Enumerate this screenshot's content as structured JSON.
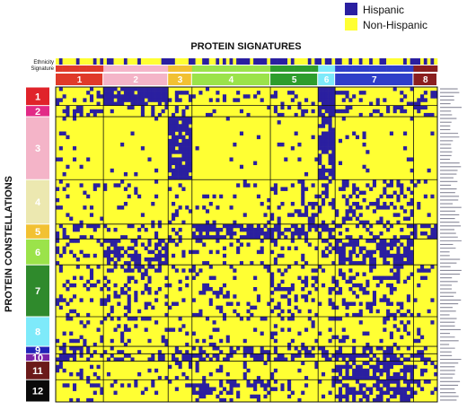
{
  "legend": {
    "items": [
      {
        "label": "Hispanic",
        "color": "#2a1fa0"
      },
      {
        "label": "Non-Hispanic",
        "color": "#ffff33"
      }
    ]
  },
  "colors": {
    "hispanic": "#2a1fa0",
    "non_hispanic": "#ffff33",
    "grid_lines": "#111111"
  },
  "chart_data": {
    "type": "heatmap",
    "title": "PROTEIN SIGNATURES",
    "ylabel": "PROTEIN CONSTELLATIONS",
    "track_labels": [
      "Ethnicity",
      "Signature"
    ],
    "value_encoding": "binary (1 = Hispanic color, 0 = Non-Hispanic color)",
    "signatures": [
      {
        "label": "1",
        "color": "#e03a2a",
        "columns": 14
      },
      {
        "label": "2",
        "color": "#f4b4c8",
        "columns": 19
      },
      {
        "label": "3",
        "color": "#f2c132",
        "columns": 7
      },
      {
        "label": "4",
        "color": "#9be34a",
        "columns": 23
      },
      {
        "label": "5",
        "color": "#2e9d2c",
        "columns": 14
      },
      {
        "label": "6",
        "color": "#7eeafa",
        "columns": 5
      },
      {
        "label": "7",
        "color": "#2f3ec9",
        "columns": 23
      },
      {
        "label": "8",
        "color": "#8a1f1f",
        "columns": 7
      }
    ],
    "constellations": [
      {
        "label": "1",
        "color": "#e0232a",
        "rows": 5
      },
      {
        "label": "2",
        "color": "#e22a86",
        "rows": 3
      },
      {
        "label": "3",
        "color": "#f4b4c8",
        "rows": 17
      },
      {
        "label": "4",
        "color": "#ece8b0",
        "rows": 12
      },
      {
        "label": "5",
        "color": "#f2c132",
        "rows": 4
      },
      {
        "label": "6",
        "color": "#9be34a",
        "rows": 7
      },
      {
        "label": "7",
        "color": "#2f8a2c",
        "rows": 14
      },
      {
        "label": "8",
        "color": "#7eeafa",
        "rows": 8
      },
      {
        "label": "9",
        "color": "#2323b8",
        "rows": 2
      },
      {
        "label": "10",
        "color": "#7a23a8",
        "rows": 2
      },
      {
        "label": "11",
        "color": "#6b1a1a",
        "rows": 5
      },
      {
        "label": "12",
        "color": "#0a0a0a",
        "rows": 6
      }
    ],
    "block_densities": [
      [
        0.2,
        0.8,
        0.25,
        0.1,
        0.2,
        0.85,
        0.25,
        0.15
      ],
      [
        0.3,
        0.2,
        0.25,
        0.1,
        0.2,
        0.7,
        0.2,
        0.25
      ],
      [
        0.05,
        0.03,
        0.85,
        0.02,
        0.05,
        0.7,
        0.05,
        0.03
      ],
      [
        0.12,
        0.08,
        0.1,
        0.1,
        0.3,
        0.15,
        0.3,
        0.1
      ],
      [
        0.3,
        0.15,
        0.15,
        0.75,
        0.6,
        0.5,
        0.35,
        0.5
      ],
      [
        0.2,
        0.55,
        0.15,
        0.15,
        0.2,
        0.2,
        0.6,
        0.15
      ],
      [
        0.2,
        0.25,
        0.15,
        0.2,
        0.3,
        0.2,
        0.3,
        0.15
      ],
      [
        0.15,
        0.2,
        0.15,
        0.12,
        0.15,
        0.15,
        0.2,
        0.1
      ],
      [
        0.6,
        0.25,
        0.3,
        0.55,
        0.4,
        0.35,
        0.5,
        0.3
      ],
      [
        0.55,
        0.3,
        0.4,
        0.5,
        0.35,
        0.4,
        0.55,
        0.3
      ],
      [
        0.3,
        0.06,
        0.25,
        0.1,
        0.1,
        0.2,
        0.7,
        0.15
      ],
      [
        0.2,
        0.06,
        0.06,
        0.4,
        0.12,
        0.15,
        0.6,
        0.12
      ]
    ],
    "ethnicity_hispanic_share_by_signature": [
      0.45,
      0.35,
      0.4,
      0.55,
      0.5,
      0.6,
      0.55,
      0.6
    ]
  }
}
